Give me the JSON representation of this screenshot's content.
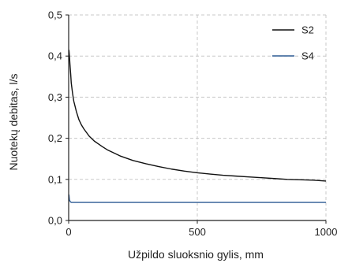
{
  "chart_data": {
    "type": "line",
    "title": "",
    "xlabel": "Užpildo sluoksnio gylis, mm",
    "ylabel": "Nuotekų debitas, l/s",
    "xlim": [
      0,
      1000
    ],
    "ylim": [
      0,
      0.5
    ],
    "x_ticks": [
      0,
      500,
      1000
    ],
    "x_tick_labels": [
      "0",
      "500",
      "1000"
    ],
    "y_ticks": [
      0,
      0.1,
      0.2,
      0.3,
      0.4,
      0.5
    ],
    "y_tick_labels": [
      "0,0",
      "0,1",
      "0,2",
      "0,3",
      "0,4",
      "0,5"
    ],
    "grid": true,
    "legend_position": "top-right",
    "series": [
      {
        "name": "S2",
        "color": "#111111",
        "x": [
          1,
          3,
          5,
          8,
          10,
          15,
          20,
          30,
          40,
          50,
          60,
          80,
          100,
          130,
          150,
          200,
          250,
          300,
          350,
          400,
          450,
          500,
          550,
          600,
          650,
          700,
          750,
          800,
          850,
          900,
          950,
          1000
        ],
        "y": [
          0.415,
          0.4,
          0.38,
          0.355,
          0.335,
          0.31,
          0.29,
          0.265,
          0.245,
          0.232,
          0.222,
          0.205,
          0.193,
          0.18,
          0.172,
          0.157,
          0.146,
          0.138,
          0.131,
          0.125,
          0.12,
          0.116,
          0.113,
          0.11,
          0.108,
          0.106,
          0.104,
          0.102,
          0.1,
          0.099,
          0.098,
          0.096
        ]
      },
      {
        "name": "S4",
        "color": "#2e5c94",
        "x": [
          1,
          3,
          6,
          10,
          20,
          50,
          100,
          200,
          300,
          400,
          500,
          600,
          700,
          800,
          900,
          1000
        ],
        "y": [
          0.063,
          0.05,
          0.046,
          0.044,
          0.044,
          0.044,
          0.044,
          0.044,
          0.044,
          0.044,
          0.044,
          0.044,
          0.044,
          0.044,
          0.044,
          0.044
        ]
      }
    ]
  }
}
